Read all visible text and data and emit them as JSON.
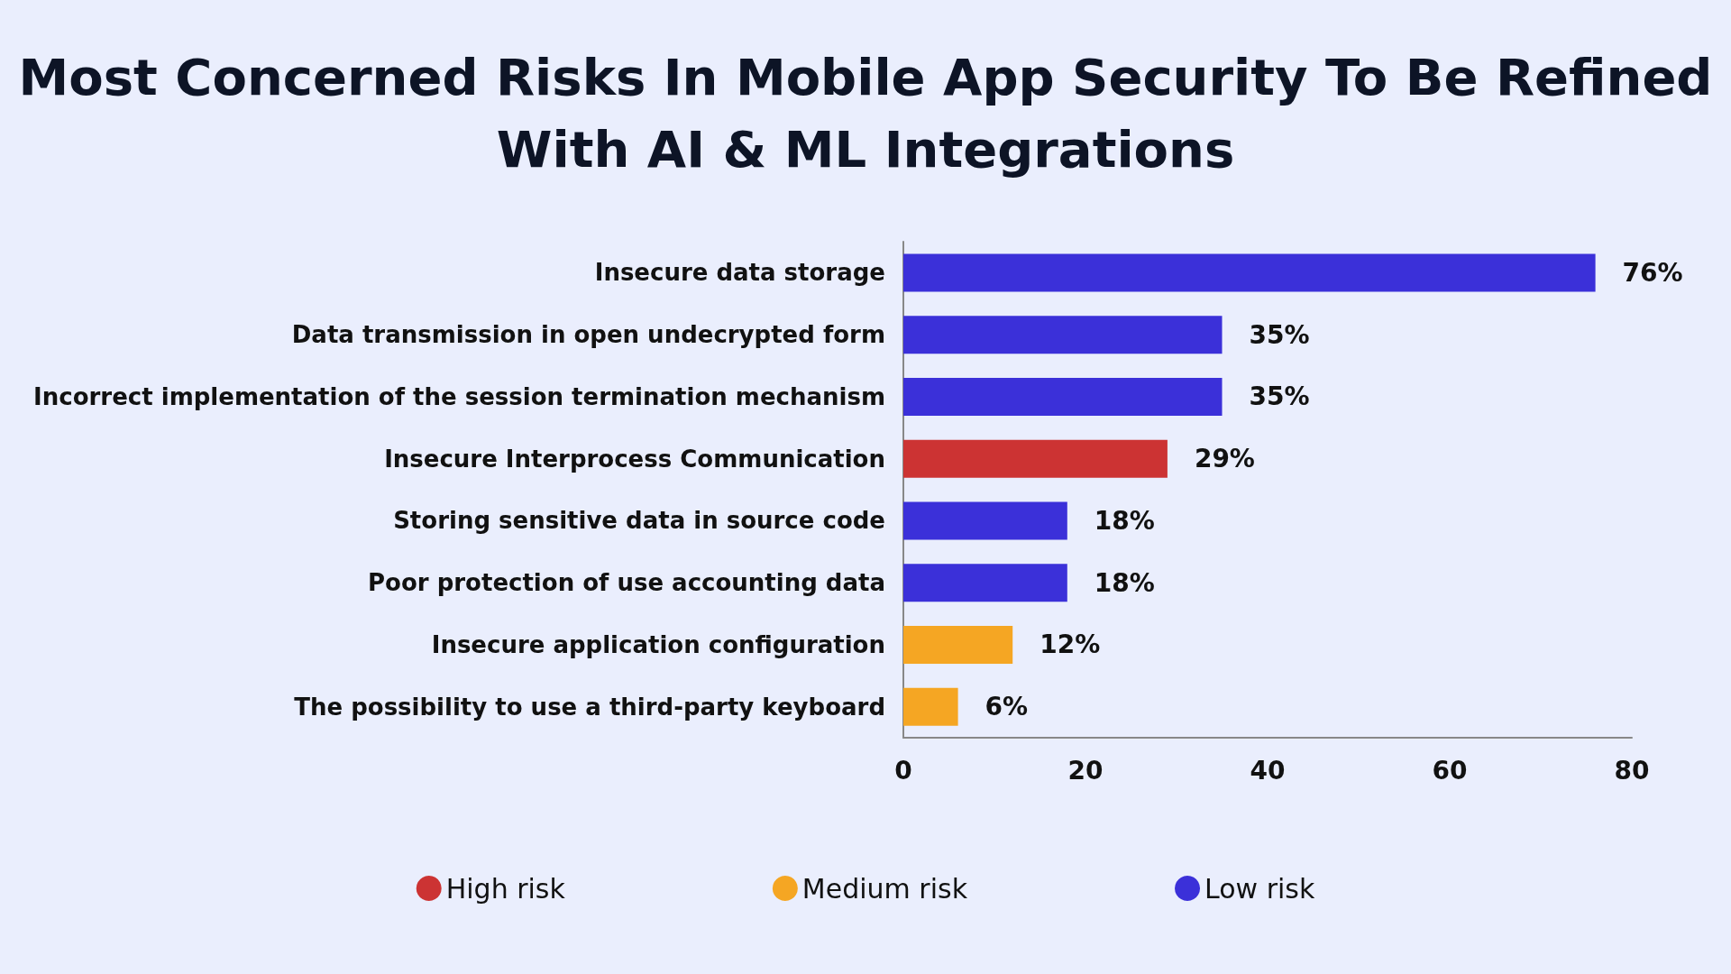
{
  "chart_data": {
    "type": "bar",
    "orientation": "horizontal",
    "stacked": true,
    "title": "Most Concerned Risks In Mobile App Security To Be Refined\nWith AI & ML Integrations",
    "categories": [
      "Insecure data storage",
      "Data transmission in open undecrypted form",
      "Incorrect implementation of the session termination mechanism",
      "Insecure Interprocess Communication",
      "Storing sensitive data in source code",
      "Poor protection of use accounting data",
      "Insecure application configuration",
      "The possibility to use a third-party keyboard"
    ],
    "series": [
      {
        "name": "High risk",
        "color": "#cc3333",
        "values": [
          null,
          null,
          null,
          29,
          null,
          null,
          null,
          null
        ],
        "value_labels": [
          null,
          null,
          null,
          "29%",
          null,
          null,
          null,
          null
        ]
      },
      {
        "name": "Medium risk",
        "color": "#f5a623",
        "values": [
          null,
          null,
          null,
          null,
          null,
          null,
          12,
          6
        ],
        "value_labels": [
          null,
          null,
          null,
          null,
          null,
          null,
          "12%",
          "6%"
        ]
      },
      {
        "name": "Low risk",
        "color": "#3b30d9",
        "values": [
          76,
          35,
          35,
          null,
          18,
          18,
          null,
          null
        ],
        "value_labels": [
          "76%",
          "35%",
          "35%",
          null,
          "18%",
          "18%",
          null,
          null
        ]
      }
    ],
    "xlim": [
      0,
      80
    ],
    "xticks": [
      0,
      20,
      40,
      60,
      80
    ],
    "grid": false,
    "legend": "bottom"
  }
}
